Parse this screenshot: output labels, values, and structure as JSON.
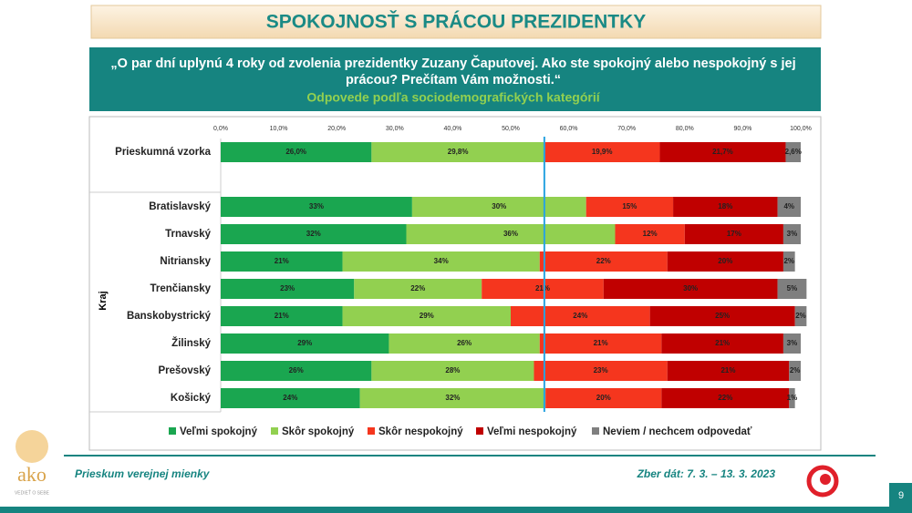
{
  "header": {
    "title": "SPOKOJNOSŤ S PRÁCOU PREZIDENTKY",
    "question": [
      "„O par dní uplynú 4 roky od zvolenia prezidentky Zuzany Čaputovej. Ako ste spokojný alebo nespokojný s jej",
      "prácou? Prečítam Vám možnosti.“"
    ],
    "subtitle": "Odpovede podľa sociodemografických kategórií"
  },
  "chart_data": {
    "type": "stacked-bar-horizontal",
    "categories": [
      "Prieskumná vzorka",
      "Bratislavský",
      "Trnavský",
      "Nitriansky",
      "Trenčiansky",
      "Banskobystrický",
      "Žilinský",
      "Prešovský",
      "Košický"
    ],
    "group_label": "Kraj",
    "xlim": [
      0,
      100
    ],
    "xticks": [
      {
        "value": 0,
        "label": "0,0%"
      },
      {
        "value": 10,
        "label": "10,0%"
      },
      {
        "value": 20,
        "label": "20,0%"
      },
      {
        "value": 30,
        "label": "30,0%"
      },
      {
        "value": 40,
        "label": "40,0%"
      },
      {
        "value": 50,
        "label": "50,0%"
      },
      {
        "value": 60,
        "label": "60,0%"
      },
      {
        "value": 70,
        "label": "70,0%"
      },
      {
        "value": 80,
        "label": "80,0%"
      },
      {
        "value": 90,
        "label": "90,0%"
      },
      {
        "value": 100,
        "label": "100,0%"
      }
    ],
    "reference_line": {
      "value": 55.8,
      "color": "#29a3e0"
    },
    "series": [
      {
        "name": "Veľmi spokojný",
        "color": "#1aa650",
        "values": [
          26.0,
          33,
          32,
          21,
          23,
          21,
          29,
          26,
          24
        ],
        "value_labels": [
          "26,0%",
          "33%",
          "32%",
          "21%",
          "23%",
          "21%",
          "29%",
          "26%",
          "24%"
        ]
      },
      {
        "name": "Skôr spokojný",
        "color": "#92d050",
        "values": [
          29.8,
          30,
          36,
          34,
          22,
          29,
          26,
          28,
          32
        ],
        "value_labels": [
          "29,8%",
          "30%",
          "36%",
          "34%",
          "22%",
          "29%",
          "26%",
          "28%",
          "32%"
        ]
      },
      {
        "name": "Skôr nespokojný",
        "color": "#f5361e",
        "values": [
          19.9,
          15,
          12,
          22,
          21,
          24,
          21,
          23,
          20
        ],
        "value_labels": [
          "19,9%",
          "15%",
          "12%",
          "22%",
          "21%",
          "24%",
          "21%",
          "23%",
          "20%"
        ]
      },
      {
        "name": "Veľmi nespokojný",
        "color": "#c00000",
        "values": [
          21.7,
          18,
          17,
          20,
          30,
          25,
          21,
          21,
          22
        ],
        "value_labels": [
          "21,7%",
          "18%",
          "17%",
          "20%",
          "30%",
          "25%",
          "21%",
          "21%",
          "22%"
        ]
      },
      {
        "name": "Neviem / nechcem odpovedať",
        "color": "#7f7f7f",
        "values": [
          2.6,
          4,
          3,
          2,
          5,
          2,
          3,
          2,
          1
        ],
        "value_labels": [
          "2,6%",
          "4%",
          "3%",
          "2%",
          "5%",
          "2%",
          "3%",
          "2%",
          "1%"
        ]
      }
    ]
  },
  "footer": {
    "left": "Prieskum verejnej mienky",
    "right": "Zber dát: 7. 3. – 13. 3. 2023",
    "page": "9",
    "logo": "ako",
    "logo_tagline": "VEDIEŤ O SEBE"
  }
}
